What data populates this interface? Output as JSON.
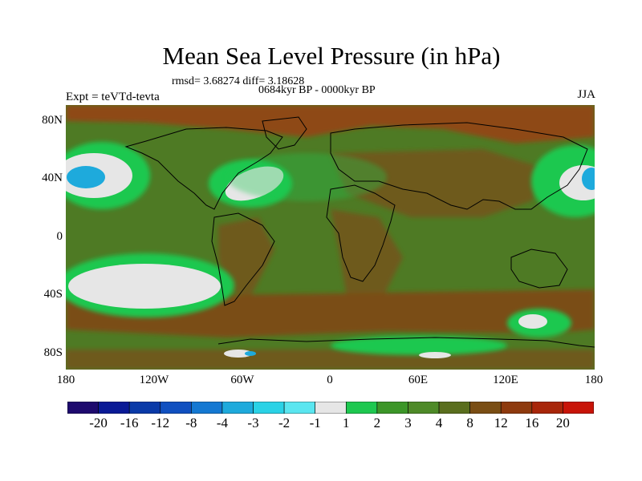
{
  "title": "Mean Sea Level Pressure (in hPa)",
  "stats": "rmsd= 3.68274 diff= 3.18628",
  "period": "0684kyr BP - 0000kyr BP",
  "experiment": "Expt = teVTd-tevta",
  "season": "JJA",
  "y_axis": {
    "labels": [
      "80N",
      "40N",
      "0",
      "40S",
      "80S"
    ],
    "values": [
      80,
      40,
      0,
      -40,
      -80
    ],
    "range": [
      -90,
      90
    ]
  },
  "x_axis": {
    "labels": [
      "180",
      "120W",
      "60W",
      "0",
      "60E",
      "120E",
      "180"
    ],
    "values": [
      -180,
      -120,
      -60,
      0,
      60,
      120,
      180
    ],
    "range": [
      -180,
      180
    ]
  },
  "colorbar": {
    "labels": [
      "-20",
      "-16",
      "-12",
      "-8",
      "-4",
      "-3",
      "-2",
      "-1",
      "1",
      "2",
      "3",
      "4",
      "8",
      "12",
      "16",
      "20"
    ],
    "colors": [
      "#1e0a6e",
      "#0a1a96",
      "#0a3aa8",
      "#1050c0",
      "#1478d2",
      "#1eaadc",
      "#2ad2e6",
      "#5ae6f0",
      "#e6e6e6",
      "#1ec850",
      "#3c9628",
      "#4e8a28",
      "#5a6e1e",
      "#7a4e14",
      "#8e3a0e",
      "#a8260a",
      "#c81408"
    ]
  },
  "map_fields": {
    "background_color": "#4e7a24",
    "regions": [
      {
        "name": "north-polar-high",
        "color": "#8e4a14"
      },
      {
        "name": "north-pacific-low",
        "color": "#1ec850"
      },
      {
        "name": "north-pacific-core",
        "color": "#e6e6e6"
      },
      {
        "name": "north-atlantic-low",
        "color": "#e6e6e6"
      },
      {
        "name": "south-pacific-low",
        "color": "#e6e6e6"
      },
      {
        "name": "southern-ocean-band",
        "color": "#7a4e14"
      },
      {
        "name": "antarctic-lows",
        "color": "#1ec850"
      }
    ]
  }
}
